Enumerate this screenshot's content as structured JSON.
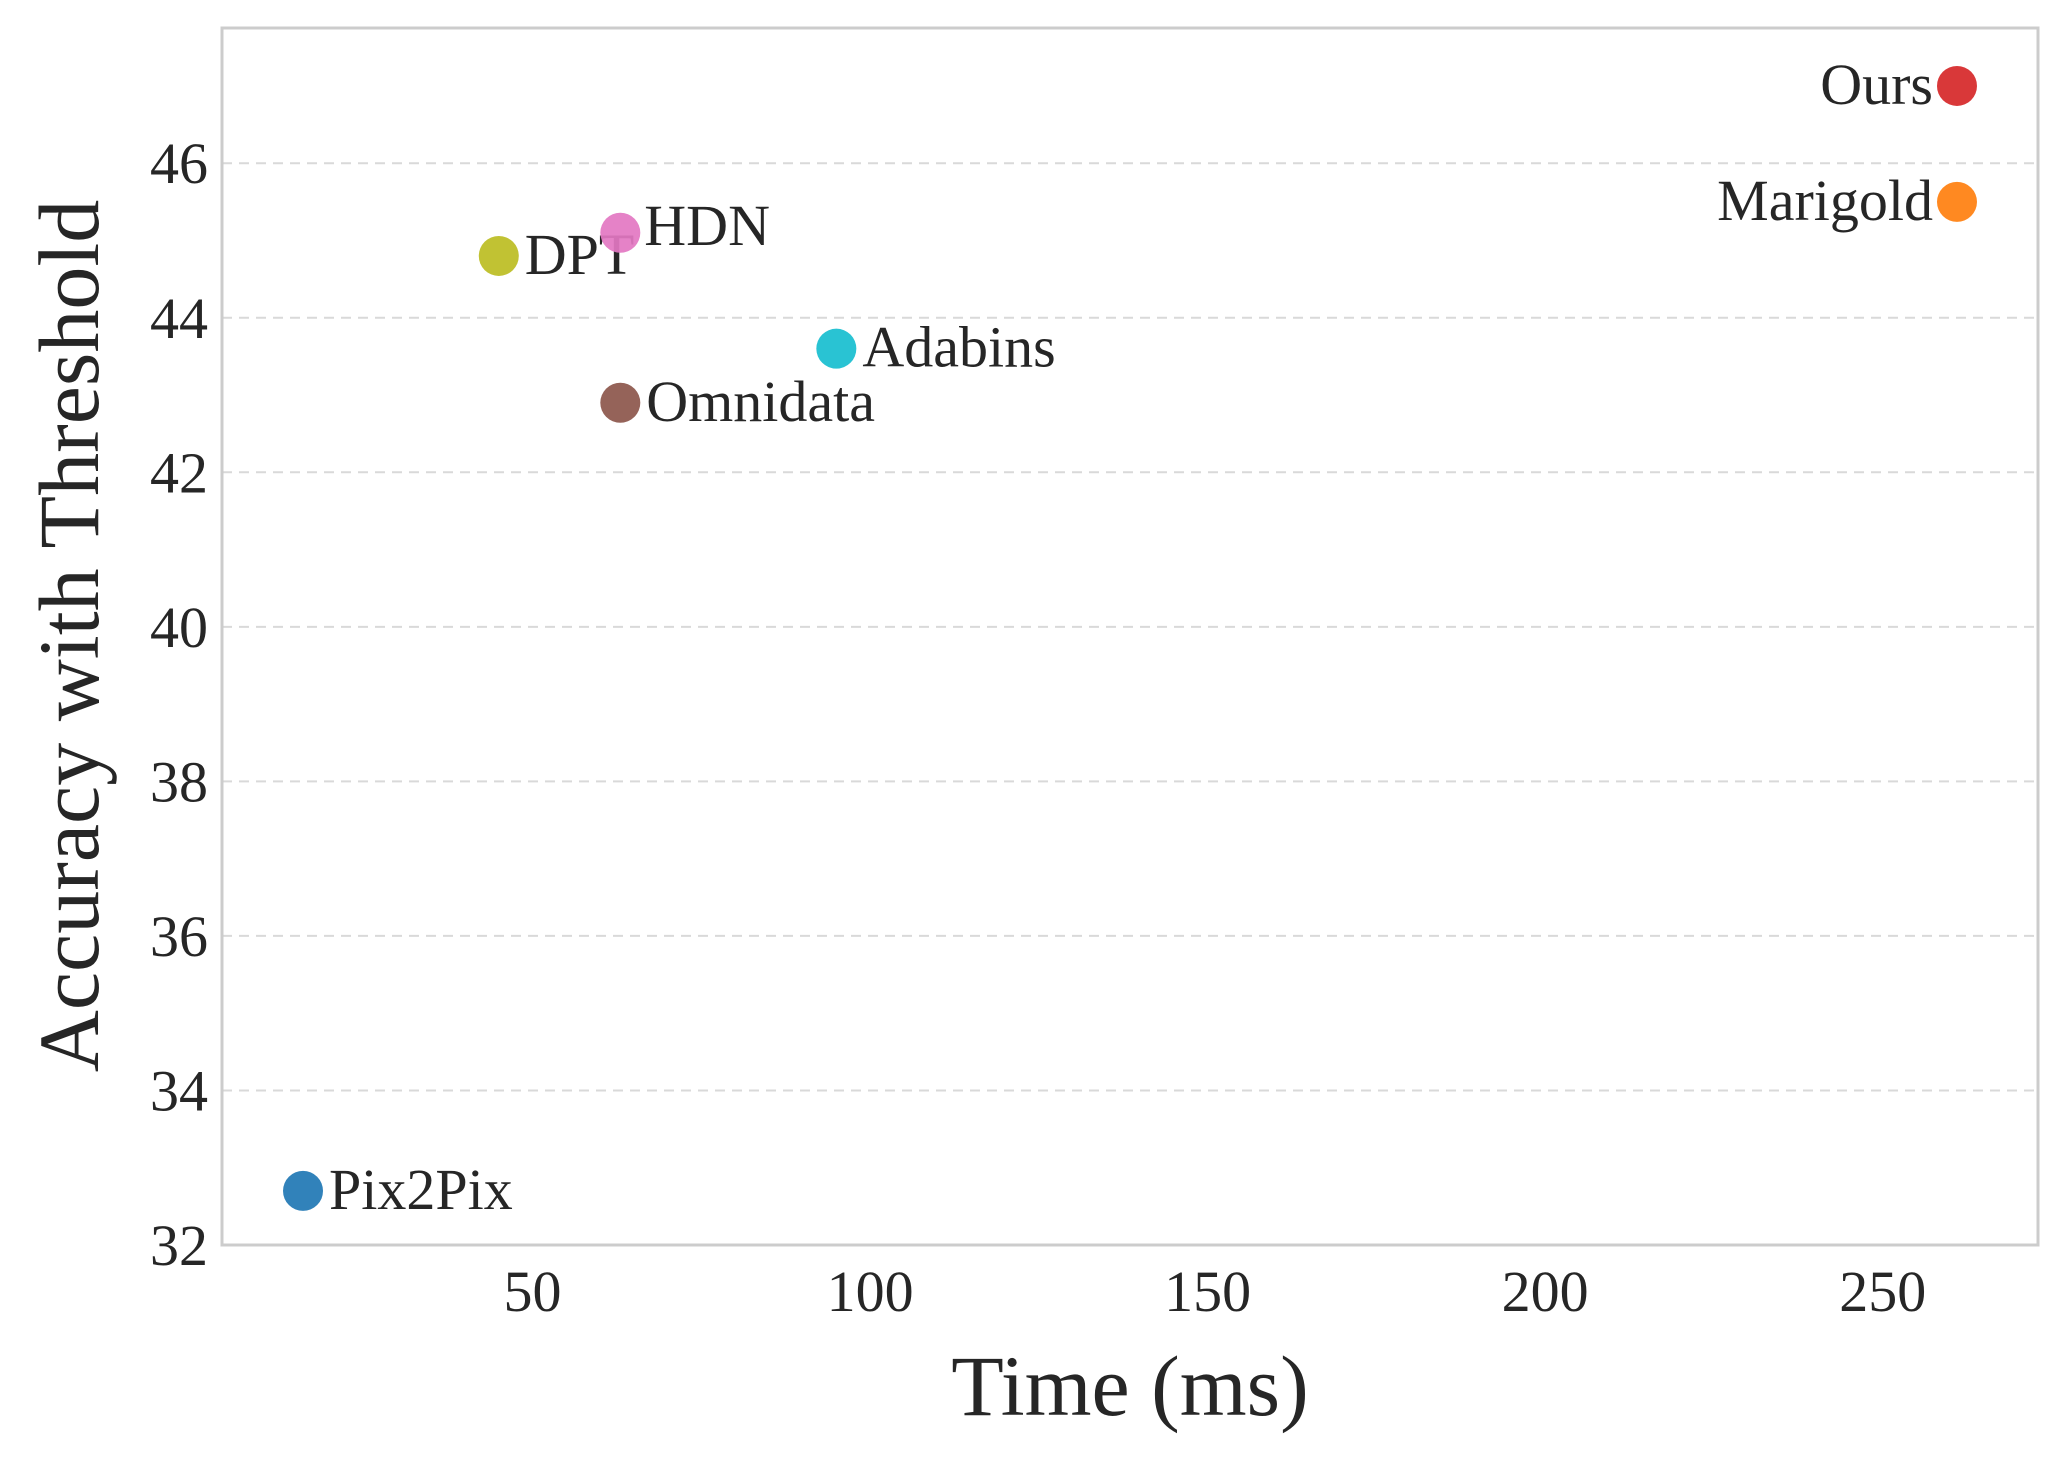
{
  "chart_data": {
    "type": "scatter",
    "title": "",
    "xlabel": "Time (ms)",
    "ylabel": "Accuracy with Threshold",
    "xlim": [
      4,
      273
    ],
    "ylim": [
      32,
      47.75
    ],
    "xticks": [
      50,
      100,
      150,
      200,
      250
    ],
    "yticks": [
      32,
      34,
      36,
      38,
      40,
      42,
      44,
      46
    ],
    "grid": "y-dashed",
    "points": [
      {
        "name": "Pix2Pix",
        "x": 16,
        "y": 32.7,
        "color": "#1f77b4",
        "label_side": "right"
      },
      {
        "name": "DPT",
        "x": 45,
        "y": 44.8,
        "color": "#bcbd22",
        "label_side": "right"
      },
      {
        "name": "HDN",
        "x": 63,
        "y": 45.1,
        "color": "#e377c2",
        "label_side": "right-up"
      },
      {
        "name": "Omnidata",
        "x": 63,
        "y": 42.9,
        "color": "#8c564b",
        "label_side": "right"
      },
      {
        "name": "Adabins",
        "x": 95,
        "y": 43.6,
        "color": "#17becf",
        "label_side": "right"
      },
      {
        "name": "Ours",
        "x": 261,
        "y": 47.0,
        "color": "#d62728",
        "label_side": "left"
      },
      {
        "name": "Marigold",
        "x": 261,
        "y": 45.5,
        "color": "#ff7f0e",
        "label_side": "left"
      }
    ]
  }
}
